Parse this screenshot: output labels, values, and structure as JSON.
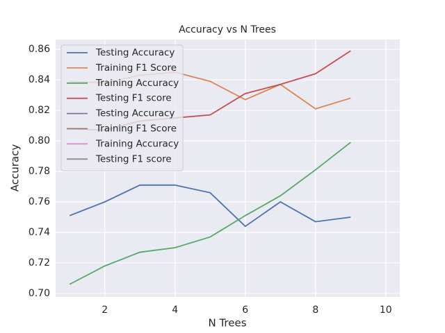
{
  "chart_data": {
    "type": "line",
    "title": "Accuracy vs N Trees",
    "x_label": "N Trees",
    "y_label": "Accuracy",
    "x": [
      1,
      2,
      3,
      4,
      5,
      6,
      7,
      8,
      9
    ],
    "series": [
      {
        "name": "Testing Accuracy",
        "color": "#4c72b0",
        "values": [
          0.751,
          0.76,
          0.771,
          0.771,
          0.766,
          0.744,
          0.76,
          0.747,
          0.75
        ]
      },
      {
        "name": "Training F1 Score",
        "color": "#dd8452",
        "values": [
          0.839,
          0.838,
          0.843,
          0.845,
          0.839,
          0.827,
          0.837,
          0.821,
          0.828
        ]
      },
      {
        "name": "Training Accuracy",
        "color": "#55a868",
        "values": [
          0.706,
          0.718,
          0.727,
          0.73,
          0.737,
          0.751,
          0.764,
          0.781,
          0.799
        ]
      },
      {
        "name": "Testing F1 score",
        "color": "#c44e52",
        "values": [
          0.808,
          0.807,
          0.813,
          0.815,
          0.817,
          0.831,
          0.837,
          0.844,
          0.859
        ]
      },
      {
        "name": "Testing Accuracy",
        "color": "#8172b3",
        "values": [
          null,
          null,
          null,
          null,
          null,
          null,
          null,
          null,
          null
        ]
      },
      {
        "name": "Training F1 Score",
        "color": "#937860",
        "values": [
          null,
          null,
          null,
          null,
          null,
          null,
          null,
          null,
          null
        ]
      },
      {
        "name": "Training Accuracy",
        "color": "#da8bc3",
        "values": [
          null,
          null,
          null,
          null,
          null,
          null,
          null,
          null,
          null
        ]
      },
      {
        "name": "Testing F1 score",
        "color": "#8c8c8c",
        "values": [
          null,
          null,
          null,
          null,
          null,
          null,
          null,
          null,
          null
        ]
      }
    ],
    "xlim": [
      0.6,
      10.4
    ],
    "xticks": [
      2,
      4,
      6,
      8,
      10
    ],
    "ylim": [
      0.6977,
      0.8664
    ],
    "yticks": [
      {
        "value": 0.7,
        "label": "0.70"
      },
      {
        "value": 0.72,
        "label": "0.72"
      },
      {
        "value": 0.74,
        "label": "0.74"
      },
      {
        "value": 0.76,
        "label": "0.76"
      },
      {
        "value": 0.78,
        "label": "0.78"
      },
      {
        "value": 0.8,
        "label": "0.80"
      },
      {
        "value": 0.82,
        "label": "0.82"
      },
      {
        "value": 0.84,
        "label": "0.84"
      },
      {
        "value": 0.86,
        "label": "0.86"
      }
    ],
    "grid": true,
    "legend": "upper left"
  }
}
